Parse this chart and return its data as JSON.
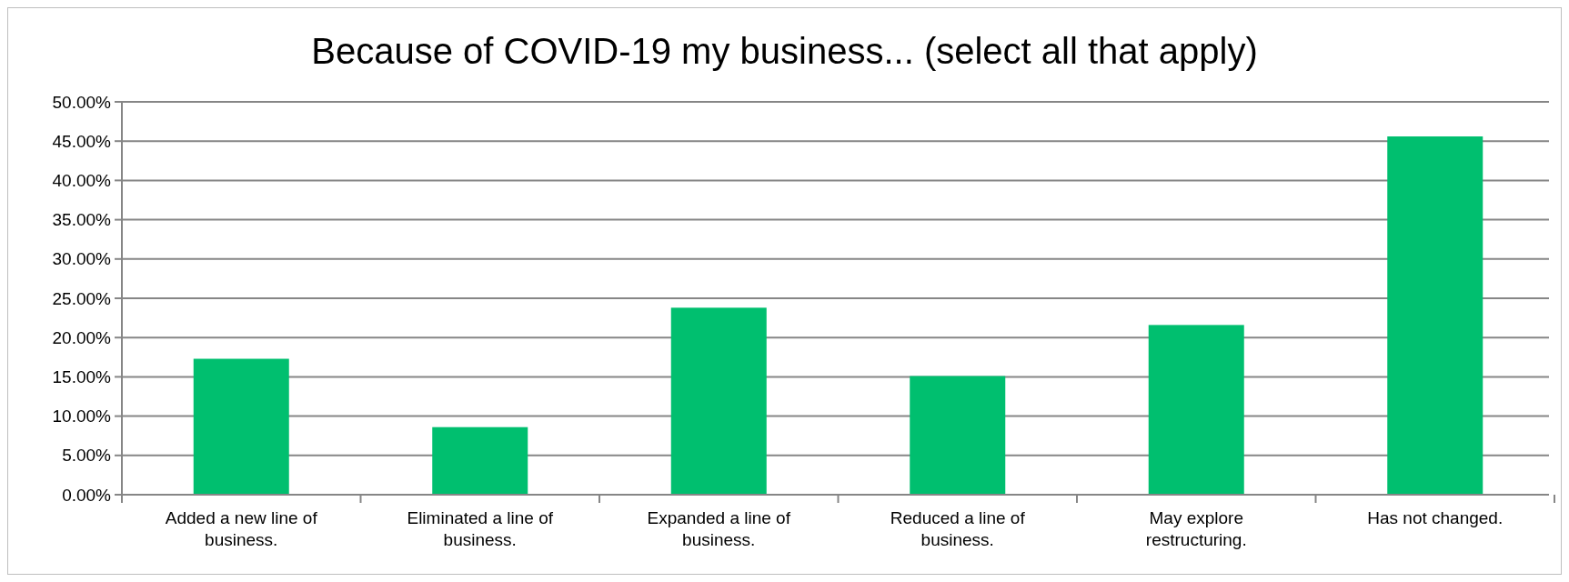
{
  "chart_data": {
    "type": "bar",
    "title": "Because of COVID-19 my business... (select all that apply)",
    "categories": [
      "Added a new line of business.",
      "Eliminated a line of business.",
      "Expanded a line of business.",
      "Reduced a line of business.",
      "May explore restructuring.",
      "Has not changed."
    ],
    "values": [
      17.3,
      8.6,
      23.8,
      15.1,
      21.6,
      45.6
    ],
    "color": "#00bf6f",
    "ylim": [
      0,
      50
    ],
    "yticks": [
      {
        "value": 0,
        "label": "0.00%"
      },
      {
        "value": 5,
        "label": "5.00%"
      },
      {
        "value": 10,
        "label": "10.00%"
      },
      {
        "value": 15,
        "label": "15.00%"
      },
      {
        "value": 20,
        "label": "20.00%"
      },
      {
        "value": 25,
        "label": "25.00%"
      },
      {
        "value": 30,
        "label": "30.00%"
      },
      {
        "value": 35,
        "label": "35.00%"
      },
      {
        "value": 40,
        "label": "40.00%"
      },
      {
        "value": 45,
        "label": "45.00%"
      },
      {
        "value": 50,
        "label": "50.00%"
      }
    ],
    "grid": "y"
  }
}
